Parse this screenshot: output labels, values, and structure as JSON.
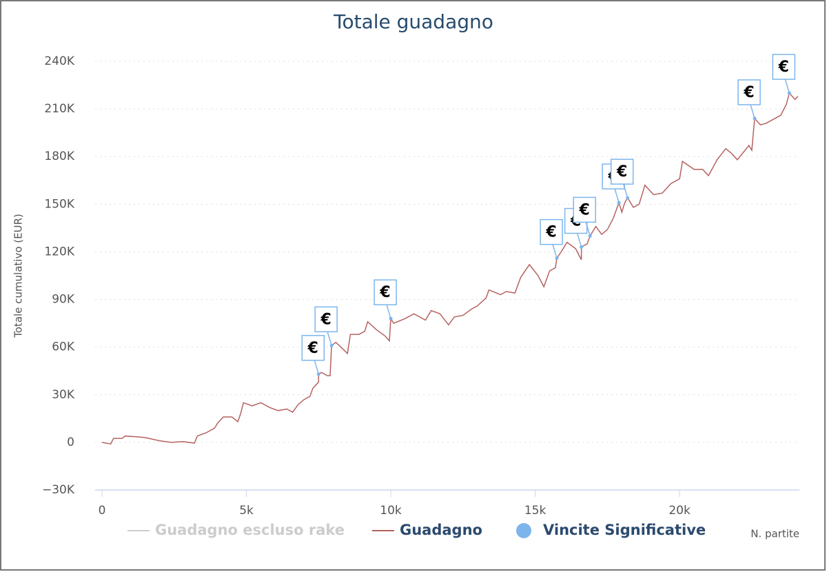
{
  "chart_data": {
    "type": "line",
    "title": "Totale guadagno",
    "x_label": "N. partite",
    "y_label": "Totale cumulativo (EUR)",
    "xlim": [
      0,
      24150
    ],
    "ylim": [
      -30000,
      240000
    ],
    "xticks": [
      0,
      {
        "value": 5000,
        "label": "5k"
      },
      {
        "value": 10000,
        "label": "10k"
      },
      {
        "value": 15000,
        "label": "15k"
      },
      {
        "value": 20000,
        "label": "20k"
      }
    ],
    "yticks": [
      {
        "value": -30000,
        "label": "−30K"
      },
      0,
      {
        "value": 30000,
        "label": "30K"
      },
      {
        "value": 60000,
        "label": "60K"
      },
      {
        "value": 90000,
        "label": "90K"
      },
      {
        "value": 120000,
        "label": "120K"
      },
      {
        "value": 150000,
        "label": "150K"
      },
      {
        "value": 180000,
        "label": "180K"
      },
      {
        "value": 210000,
        "label": "210K"
      },
      {
        "value": 240000,
        "label": "240K"
      }
    ],
    "grid": true,
    "series": [
      {
        "name": "Guadagno escluso rake",
        "color": "#cccccc",
        "hidden": true
      },
      {
        "name": "Guadagno",
        "color": "#b5615f",
        "x": [
          0,
          300,
          400,
          700,
          800,
          1200,
          1500,
          2000,
          2400,
          2800,
          3200,
          3300,
          3600,
          3900,
          4000,
          4200,
          4500,
          4700,
          4800,
          4900,
          5200,
          5500,
          5800,
          6100,
          6400,
          6600,
          6800,
          7000,
          7200,
          7300,
          7500,
          7500,
          7600,
          7800,
          7900,
          7950,
          8100,
          8500,
          8600,
          8900,
          9100,
          9200,
          9500,
          9800,
          9950,
          10000,
          10100,
          10500,
          10800,
          11200,
          11400,
          11700,
          12000,
          12200,
          12500,
          12800,
          13000,
          13300,
          13400,
          13800,
          14000,
          14300,
          14400,
          14500,
          14800,
          15100,
          15300,
          15500,
          15700,
          15750,
          15900,
          16100,
          16400,
          16600,
          16600,
          16800,
          16900,
          17100,
          17300,
          17500,
          17700,
          17900,
          18000,
          18100,
          18200,
          18400,
          18600,
          18800,
          19100,
          19400,
          19700,
          20000,
          20100,
          20500,
          20800,
          21000,
          21300,
          21600,
          21800,
          22000,
          22400,
          22500,
          22600,
          22800,
          23000,
          23500,
          23700,
          23800,
          24000,
          24100
        ],
        "values": [
          0,
          -1000,
          2500,
          2500,
          4000,
          3500,
          3000,
          1000,
          0,
          500,
          -500,
          4000,
          6000,
          9000,
          12000,
          16000,
          16000,
          13000,
          18000,
          25000,
          23000,
          25000,
          22000,
          20000,
          21000,
          19000,
          24000,
          27000,
          29000,
          34000,
          38000,
          43000,
          44000,
          42000,
          42000,
          61000,
          63000,
          56000,
          68000,
          68000,
          70000,
          76000,
          71000,
          67000,
          64000,
          78000,
          75000,
          78000,
          81000,
          77000,
          83000,
          81000,
          74000,
          79000,
          80000,
          84000,
          86000,
          91000,
          96000,
          93000,
          95000,
          94000,
          99000,
          104000,
          112000,
          105000,
          98000,
          108000,
          110000,
          116000,
          120000,
          126000,
          122000,
          115000,
          123000,
          125000,
          130000,
          136000,
          131000,
          134000,
          141000,
          151000,
          145000,
          151000,
          154000,
          148000,
          150000,
          162000,
          156000,
          157000,
          163000,
          166000,
          177000,
          172000,
          172000,
          168000,
          178000,
          185000,
          182000,
          178000,
          187000,
          184000,
          204000,
          200000,
          201000,
          206000,
          213000,
          220000,
          216000,
          218000
        ]
      },
      {
        "name": "Vincite Significative",
        "color": "#7cb5ec",
        "x": [
          7500,
          7950,
          10000,
          15750,
          16600,
          16900,
          17900,
          18200,
          22600,
          23800
        ],
        "values": [
          43000,
          61000,
          78000,
          116000,
          123000,
          130000,
          151000,
          154000,
          204000,
          220000
        ],
        "labels": [
          "€",
          "€",
          "€",
          "€",
          "€",
          "€",
          "€",
          "€",
          "€",
          "€"
        ]
      }
    ]
  }
}
